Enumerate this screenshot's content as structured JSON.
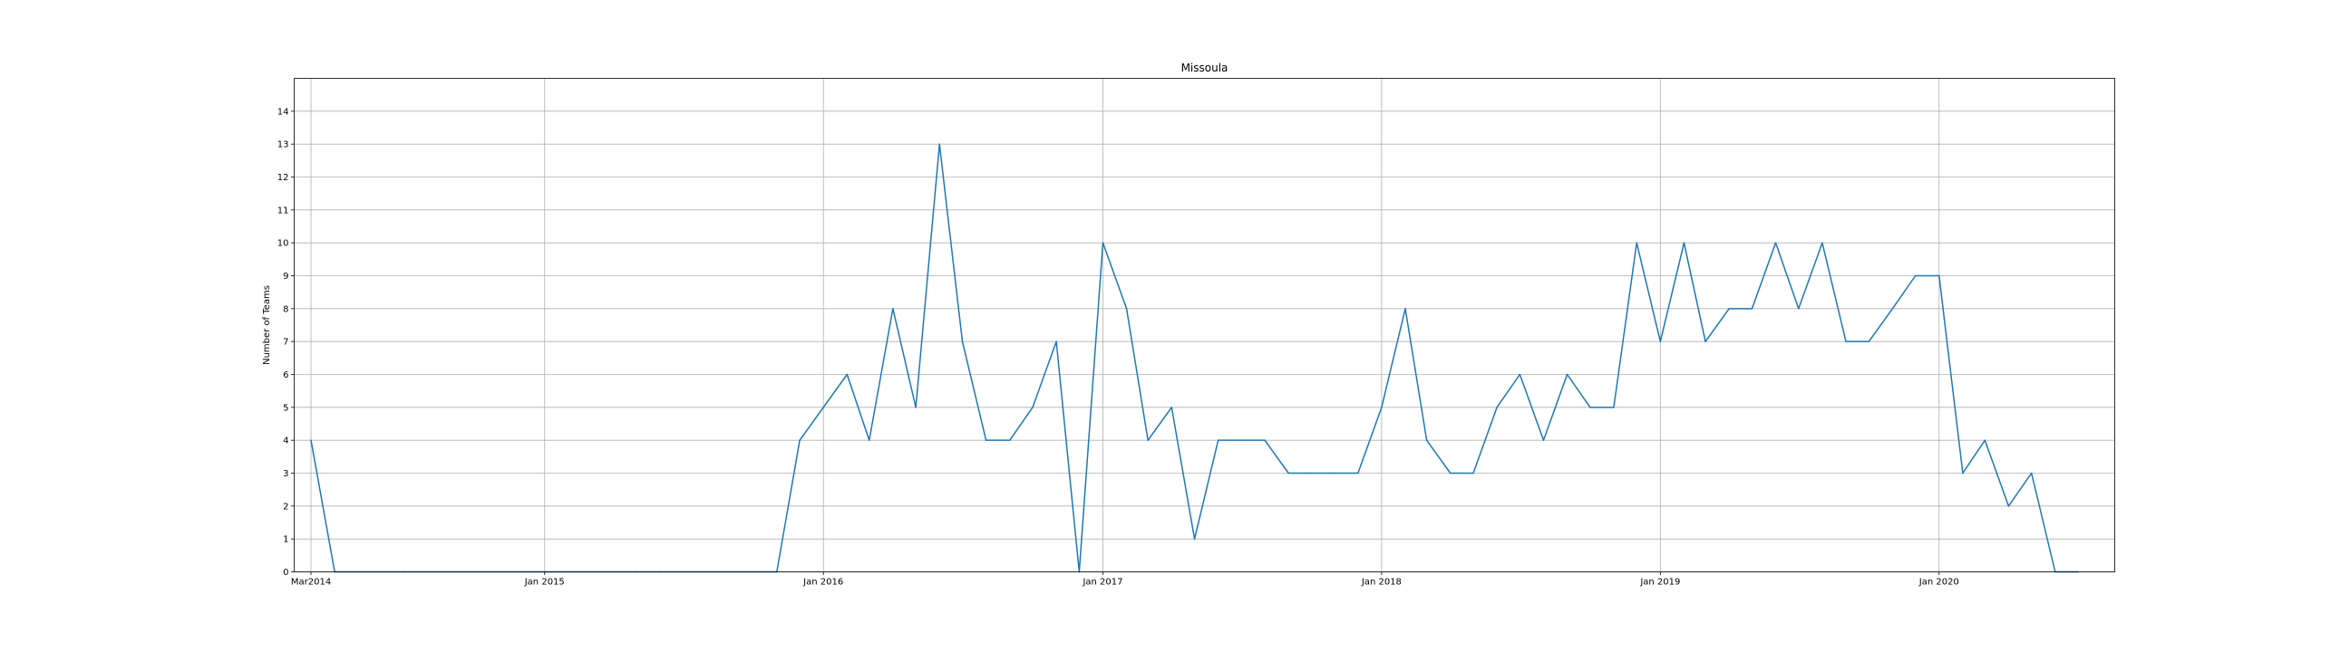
{
  "chart_data": {
    "type": "line",
    "title": "Missoula",
    "xlabel": "",
    "ylabel": "Number of Teams",
    "grid": true,
    "legend": "none",
    "xlim": [
      "2014-02-07",
      "2020-08-18"
    ],
    "ylim": [
      0,
      15
    ],
    "yticks": [
      0,
      1,
      2,
      3,
      4,
      5,
      6,
      7,
      8,
      9,
      10,
      11,
      12,
      13,
      14
    ],
    "xticks": [
      {
        "date": "2014-03-01",
        "label": "Mar2014"
      },
      {
        "date": "2015-01-01",
        "label": "Jan 2015"
      },
      {
        "date": "2016-01-01",
        "label": "Jan 2016"
      },
      {
        "date": "2017-01-01",
        "label": "Jan 2017"
      },
      {
        "date": "2018-01-01",
        "label": "Jan 2018"
      },
      {
        "date": "2019-01-01",
        "label": "Jan 2019"
      },
      {
        "date": "2020-01-01",
        "label": "Jan 2020"
      }
    ],
    "series": [
      {
        "color": "#1f77b4",
        "x": [
          "2014-03-01",
          "2014-04-01",
          "2014-05-01",
          "2014-06-01",
          "2014-07-01",
          "2014-08-01",
          "2014-09-01",
          "2014-10-01",
          "2014-11-01",
          "2014-12-01",
          "2015-01-01",
          "2015-02-01",
          "2015-03-01",
          "2015-04-01",
          "2015-05-01",
          "2015-06-01",
          "2015-07-01",
          "2015-08-01",
          "2015-09-01",
          "2015-10-01",
          "2015-11-01",
          "2015-12-01",
          "2016-01-01",
          "2016-02-01",
          "2016-03-01",
          "2016-04-01",
          "2016-05-01",
          "2016-06-01",
          "2016-07-01",
          "2016-08-01",
          "2016-09-01",
          "2016-10-01",
          "2016-11-01",
          "2016-12-01",
          "2017-01-01",
          "2017-02-01",
          "2017-03-01",
          "2017-04-01",
          "2017-05-01",
          "2017-06-01",
          "2017-07-01",
          "2017-08-01",
          "2017-09-01",
          "2017-10-01",
          "2017-11-01",
          "2017-12-01",
          "2018-01-01",
          "2018-02-01",
          "2018-03-01",
          "2018-04-01",
          "2018-05-01",
          "2018-06-01",
          "2018-07-01",
          "2018-08-01",
          "2018-09-01",
          "2018-10-01",
          "2018-11-01",
          "2018-12-01",
          "2019-01-01",
          "2019-02-01",
          "2019-03-01",
          "2019-04-01",
          "2019-05-01",
          "2019-06-01",
          "2019-07-01",
          "2019-08-01",
          "2019-09-01",
          "2019-10-01",
          "2019-11-01",
          "2019-12-01",
          "2020-01-01",
          "2020-02-01",
          "2020-03-01",
          "2020-04-01",
          "2020-05-01",
          "2020-06-01",
          "2020-07-01"
        ],
        "values": [
          4,
          0,
          0,
          0,
          0,
          0,
          0,
          0,
          0,
          0,
          0,
          0,
          0,
          0,
          0,
          0,
          0,
          0,
          0,
          0,
          0,
          4,
          5,
          6,
          4,
          8,
          5,
          13,
          7,
          4,
          4,
          5,
          7,
          0,
          10,
          8,
          4,
          5,
          1,
          4,
          4,
          4,
          3,
          3,
          3,
          3,
          5,
          8,
          4,
          3,
          3,
          5,
          6,
          4,
          6,
          5,
          5,
          10,
          7,
          10,
          7,
          8,
          8,
          10,
          8,
          10,
          7,
          7,
          8,
          9,
          9,
          3,
          4,
          2,
          3,
          0,
          0
        ]
      }
    ]
  }
}
